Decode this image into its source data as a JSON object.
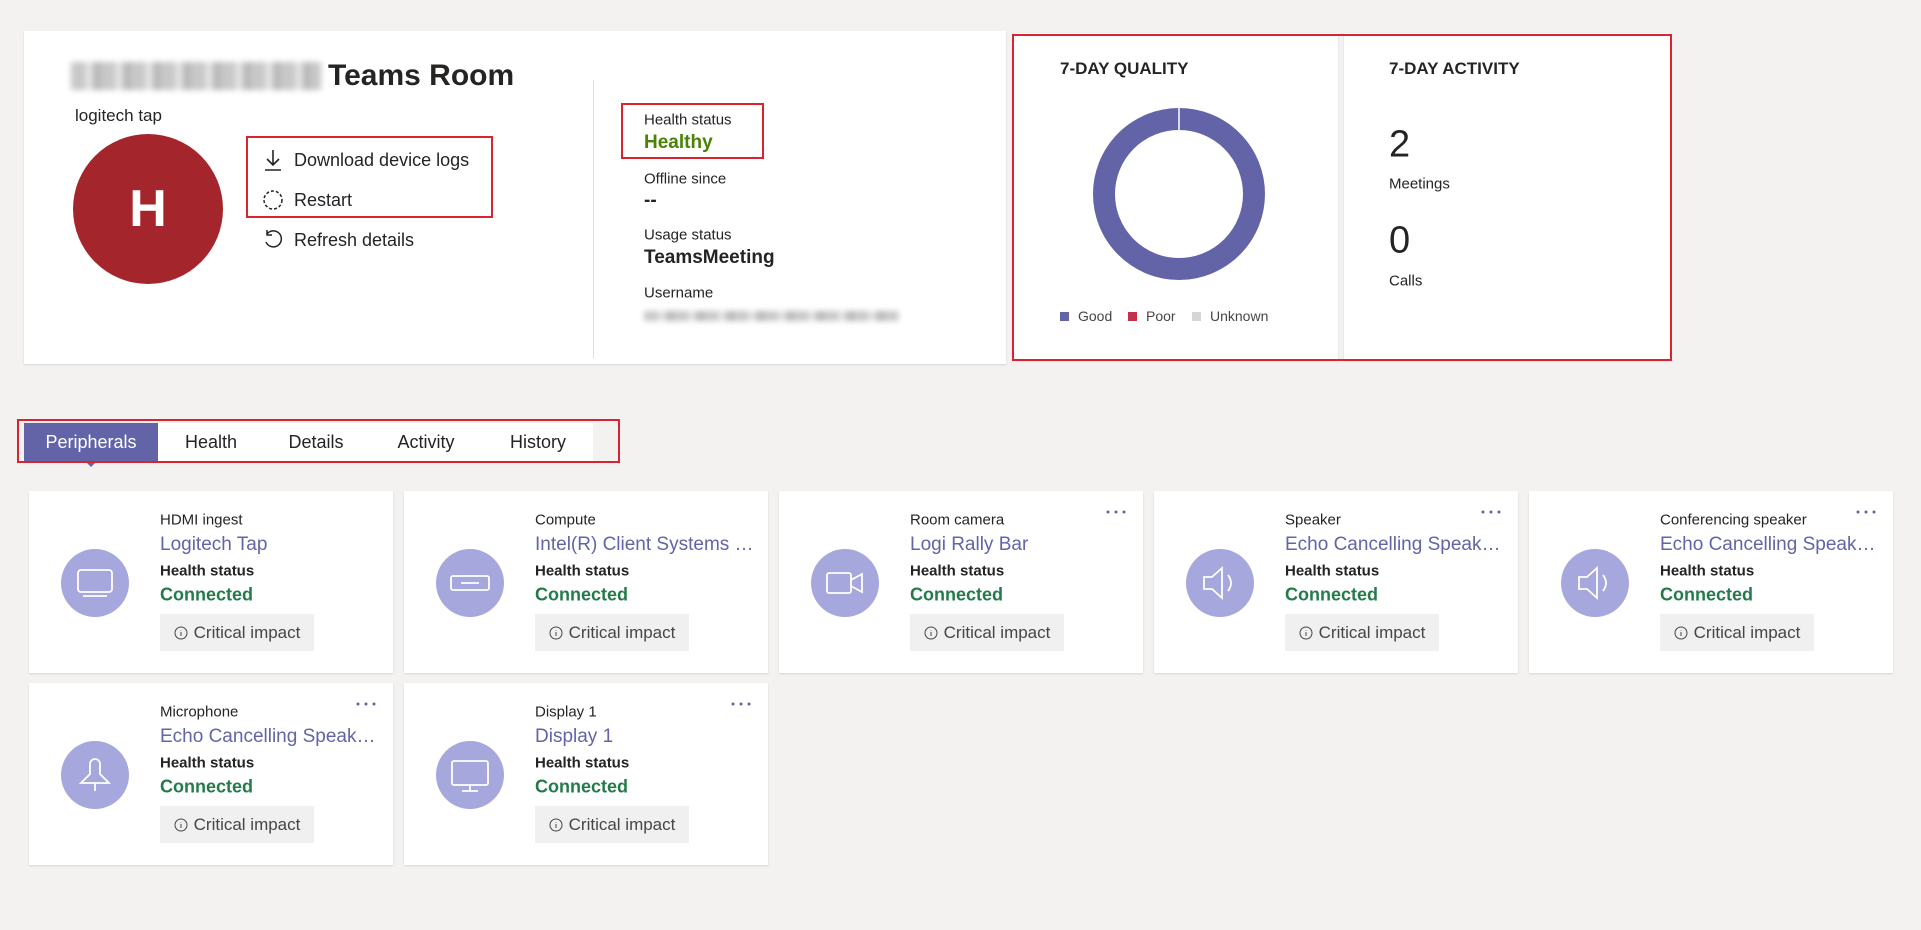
{
  "device": {
    "name": "Teams Room",
    "model": "logitech tap",
    "avatar": "H",
    "actions": [
      "Download device logs",
      "Restart",
      "Refresh details"
    ]
  },
  "status": [
    {
      "label": "Health status",
      "value": "Healthy"
    },
    {
      "label": "Offline since",
      "value": "--"
    },
    {
      "label": "Usage status",
      "value": "TeamsMeeting"
    },
    {
      "label": "Username"
    }
  ],
  "quality": {
    "title": "7-DAY QUALITY",
    "type": "donut",
    "segments": [
      {
        "name": "Good",
        "color": "#6264a7",
        "value": 100
      },
      {
        "name": "Poor",
        "color": "#c4314b",
        "value": 0
      },
      {
        "name": "Unknown",
        "color": "#d6d6d6",
        "value": 0
      }
    ]
  },
  "activity": {
    "title": "7-DAY ACTIVITY",
    "items": [
      {
        "value": 2,
        "label": "Meetings"
      },
      {
        "value": 0,
        "label": "Calls"
      }
    ]
  },
  "tabs": [
    "Peripherals",
    "Health",
    "Details",
    "Activity",
    "History"
  ],
  "selected_tab": 0,
  "peripherals": [
    {
      "type": "HDMI ingest",
      "name": "Logitech Tap",
      "status_label": "Health status",
      "status": "Connected",
      "impact": "Critical impact"
    },
    {
      "type": "Compute",
      "name": "Intel(R) Client Systems NUC",
      "status_label": "Health status",
      "status": "Connected",
      "impact": "Critical impact"
    },
    {
      "type": "Room camera",
      "name": "Logi Rally Bar",
      "status_label": "Health status",
      "status": "Connected",
      "impact": "Critical impact"
    },
    {
      "type": "Speaker",
      "name": "Echo Cancelling Speakerphone",
      "status_label": "Health status",
      "status": "Connected",
      "impact": "Critical impact"
    },
    {
      "type": "Conferencing speaker",
      "name": "Echo Cancelling Speakerphone",
      "status_label": "Health status",
      "status": "Connected",
      "impact": "Critical impact"
    },
    {
      "type": "Microphone",
      "name": "Echo Cancelling Speakerphone",
      "status_label": "Health status",
      "status": "Connected",
      "impact": "Critical impact"
    },
    {
      "type": "Display 1",
      "name": "Display 1",
      "status_label": "Health status",
      "status": "Connected",
      "impact": "Critical impact"
    }
  ]
}
